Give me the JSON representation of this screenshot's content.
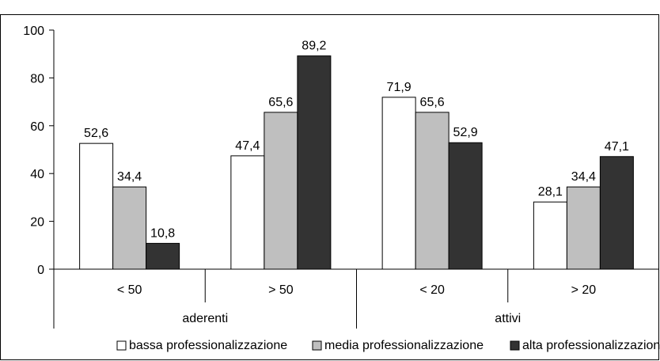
{
  "top_fragment": "",
  "chart_data": {
    "type": "bar",
    "title": "",
    "xlabel": "",
    "ylabel": "",
    "ylim": [
      0,
      100
    ],
    "yticks": [
      "0",
      "20",
      "40",
      "60",
      "80",
      "100"
    ],
    "grid": false,
    "legend_position": "bottom",
    "groups": [
      {
        "label": "aderenti",
        "categories": [
          "< 50",
          "> 50"
        ]
      },
      {
        "label": "attivi",
        "categories": [
          "< 20",
          "> 20"
        ]
      }
    ],
    "categories": [
      "< 50",
      "> 50",
      "< 20",
      "> 20"
    ],
    "series": [
      {
        "name": "bassa professionalizzazione",
        "values": [
          52.6,
          47.4,
          71.9,
          28.1
        ],
        "labels": [
          "52,6",
          "47,4",
          "71,9",
          "28,1"
        ],
        "color": "#ffffff"
      },
      {
        "name": "media professionalizzazione",
        "values": [
          34.4,
          65.6,
          65.6,
          34.4
        ],
        "labels": [
          "34,4",
          "65,6",
          "65,6",
          "34,4"
        ],
        "color": "#bfbfbf"
      },
      {
        "name": "alta professionalizzazione",
        "values": [
          10.8,
          89.2,
          52.9,
          47.1
        ],
        "labels": [
          "10,8",
          "89,2",
          "52,9",
          "47,1"
        ],
        "color": "#333333"
      }
    ]
  }
}
